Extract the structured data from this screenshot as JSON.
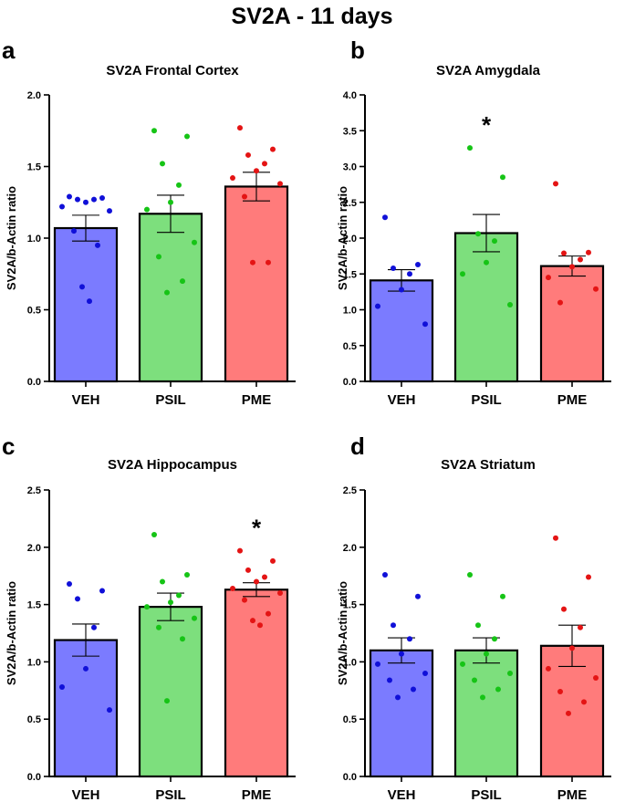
{
  "figure_title": "SV2A - 11 days",
  "colors": {
    "VEH": "#7b7bff",
    "PSIL": "#7ddf7d",
    "PME": "#ff7b7b",
    "VEH_dot": "#1010d8",
    "PSIL_dot": "#16c416",
    "PME_dot": "#e41414"
  },
  "chart_data": [
    {
      "type": "bar",
      "letter": "a",
      "title": "SV2A Frontal Cortex",
      "ylabel": "SV2A/b-Actin ratio",
      "ylim": [
        0,
        2.0
      ],
      "yticks": [
        0.0,
        0.5,
        1.0,
        1.5,
        2.0
      ],
      "ytick_labels": [
        "0.0",
        "0.5",
        "1.0",
        "1.5",
        "2.0"
      ],
      "categories": [
        "VEH",
        "PSIL",
        "PME"
      ],
      "values": [
        1.07,
        1.17,
        1.36
      ],
      "sem": [
        0.09,
        0.13,
        0.1
      ],
      "points": [
        [
          1.29,
          1.28,
          1.27,
          1.27,
          1.25,
          1.22,
          1.19,
          1.05,
          0.95,
          0.66,
          0.56
        ],
        [
          1.75,
          1.71,
          1.52,
          1.37,
          1.25,
          1.2,
          0.97,
          0.87,
          0.7,
          0.62
        ],
        [
          1.77,
          1.62,
          1.58,
          1.52,
          1.47,
          1.42,
          1.38,
          1.29,
          0.83,
          0.83
        ]
      ],
      "significance": [
        null,
        null,
        null
      ]
    },
    {
      "type": "bar",
      "letter": "b",
      "title": "SV2A Amygdala",
      "ylabel": "SV2A/b-Actin ratio",
      "ylim": [
        0,
        4.0
      ],
      "yticks": [
        0.0,
        0.5,
        1.0,
        1.5,
        2.0,
        2.5,
        3.0,
        3.5,
        4.0
      ],
      "ytick_labels": [
        "0.0",
        "0.5",
        "1.0",
        "1.5",
        "2.0",
        "2.5",
        "3.0",
        "3.5",
        "4.0"
      ],
      "categories": [
        "VEH",
        "PSIL",
        "PME"
      ],
      "values": [
        1.41,
        2.07,
        1.61
      ],
      "sem": [
        0.15,
        0.26,
        0.14
      ],
      "points": [
        [
          2.29,
          1.63,
          1.58,
          1.5,
          1.28,
          1.05,
          0.8
        ],
        [
          3.26,
          2.85,
          2.06,
          1.96,
          1.66,
          1.5,
          1.07
        ],
        [
          2.76,
          1.8,
          1.79,
          1.7,
          1.6,
          1.45,
          1.29,
          1.1
        ]
      ],
      "significance": [
        null,
        "*",
        null
      ]
    },
    {
      "type": "bar",
      "letter": "c",
      "title": "SV2A Hippocampus",
      "ylabel": "SV2A/b-Actin ratio",
      "ylim": [
        0,
        2.5
      ],
      "yticks": [
        0.0,
        0.5,
        1.0,
        1.5,
        2.0,
        2.5
      ],
      "ytick_labels": [
        "0.0",
        "0.5",
        "1.0",
        "1.5",
        "2.0",
        "2.5"
      ],
      "categories": [
        "VEH",
        "PSIL",
        "PME"
      ],
      "values": [
        1.19,
        1.48,
        1.63
      ],
      "sem": [
        0.14,
        0.12,
        0.06
      ],
      "points": [
        [
          1.68,
          1.62,
          1.55,
          1.3,
          0.94,
          0.78,
          0.58
        ],
        [
          2.11,
          1.76,
          1.7,
          1.58,
          1.52,
          1.48,
          1.38,
          1.3,
          1.2,
          0.66
        ],
        [
          1.97,
          1.88,
          1.8,
          1.74,
          1.7,
          1.64,
          1.6,
          1.54,
          1.42,
          1.36,
          1.32
        ]
      ],
      "significance": [
        null,
        null,
        "*"
      ]
    },
    {
      "type": "bar",
      "letter": "d",
      "title": "SV2A Striatum",
      "ylabel": "SV2A/b-Actin ratio",
      "ylim": [
        0,
        2.5
      ],
      "yticks": [
        0.0,
        0.5,
        1.0,
        1.5,
        2.0,
        2.5
      ],
      "ytick_labels": [
        "0.0",
        "0.5",
        "1.0",
        "1.5",
        "2.0",
        "2.5"
      ],
      "categories": [
        "VEH",
        "PSIL",
        "PME"
      ],
      "values": [
        1.1,
        1.1,
        1.14
      ],
      "sem": [
        0.11,
        0.11,
        0.18
      ],
      "points": [
        [
          1.76,
          1.57,
          1.32,
          1.2,
          1.07,
          0.98,
          0.9,
          0.84,
          0.76,
          0.69
        ],
        [
          1.76,
          1.57,
          1.32,
          1.2,
          1.07,
          0.98,
          0.9,
          0.84,
          0.76,
          0.69
        ],
        [
          2.08,
          1.74,
          1.46,
          1.3,
          1.12,
          0.94,
          0.86,
          0.74,
          0.65,
          0.55
        ]
      ],
      "significance": [
        null,
        null,
        null
      ]
    }
  ]
}
